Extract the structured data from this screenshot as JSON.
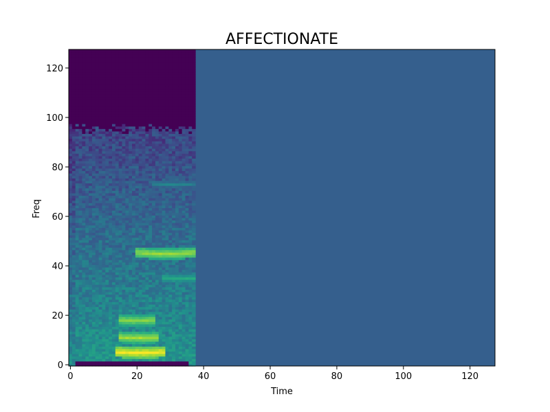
{
  "chart_data": {
    "type": "heatmap",
    "title": "AFFECTIONATE",
    "xlabel": "Time",
    "ylabel": "Freq",
    "xlim": [
      0,
      127
    ],
    "ylim": [
      0,
      127
    ],
    "xticks": [
      0,
      20,
      40,
      60,
      80,
      100,
      120
    ],
    "yticks": [
      0,
      20,
      40,
      60,
      80,
      100,
      120
    ],
    "colormap": "viridis",
    "padding_color": "#355f8d",
    "signal_end_time": 38,
    "silence_floor_freq": 96,
    "bright_bands": [
      {
        "freq": 5,
        "time_start": 14,
        "time_end": 28,
        "level": 1.0
      },
      {
        "freq": 11,
        "time_start": 15,
        "time_end": 26,
        "level": 0.88
      },
      {
        "freq": 18,
        "time_start": 15,
        "time_end": 25,
        "level": 0.84
      },
      {
        "freq": 45,
        "time_start": 20,
        "time_end": 38,
        "level": 0.86
      },
      {
        "freq": 35,
        "time_start": 28,
        "time_end": 38,
        "level": 0.62
      },
      {
        "freq": 73,
        "time_start": 25,
        "time_end": 38,
        "level": 0.45
      }
    ],
    "grid": false,
    "legend": "none"
  }
}
